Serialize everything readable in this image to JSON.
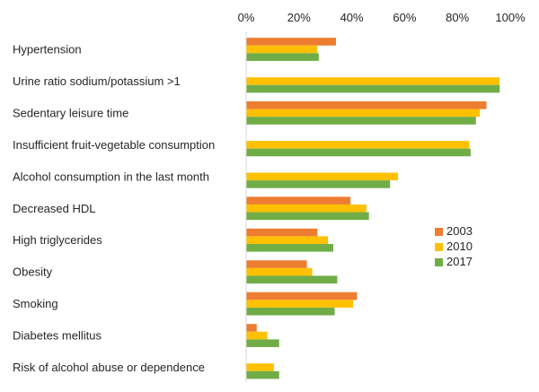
{
  "chart_data": {
    "type": "bar",
    "orientation": "horizontal",
    "categories": [
      "Hypertension",
      "Urine ratio sodium/potassium >1",
      "Sedentary leisure time",
      "Insufficient fruit-vegetable consumption",
      "Alcohol consumption in the last month",
      "Decreased HDL",
      "High triglycerides",
      "Obesity",
      "Smoking",
      "Diabetes mellitus",
      "Risk of alcohol abuse or dependence"
    ],
    "series": [
      {
        "name": "2003",
        "color": "#ED7D31",
        "values": [
          0.34,
          null,
          0.91,
          null,
          null,
          0.395,
          0.27,
          0.23,
          0.42,
          0.04,
          null
        ]
      },
      {
        "name": "2010",
        "color": "#FFC000",
        "values": [
          0.27,
          0.96,
          0.885,
          0.845,
          0.575,
          0.455,
          0.31,
          0.25,
          0.405,
          0.08,
          0.105
        ]
      },
      {
        "name": "2017",
        "color": "#70AD47",
        "values": [
          0.275,
          0.96,
          0.87,
          0.85,
          0.545,
          0.465,
          0.33,
          0.345,
          0.335,
          0.125,
          0.125
        ]
      }
    ],
    "x_ticks": [
      "0%",
      "20%",
      "40%",
      "60%",
      "80%",
      "100%"
    ],
    "xlim": [
      0,
      1
    ],
    "x_axis_position": "top",
    "grid": false,
    "legend_position": "right"
  }
}
